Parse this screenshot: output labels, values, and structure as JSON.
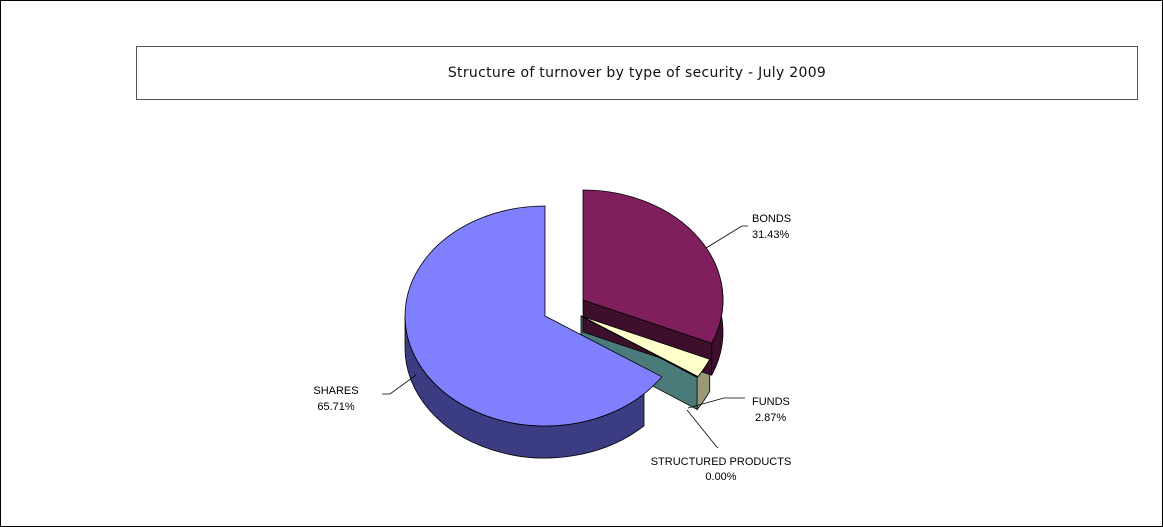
{
  "chart_data": {
    "type": "pie",
    "title": "Structure of turnover by type of security - July 2009",
    "slices": [
      {
        "label": "BONDS",
        "value": 31.43,
        "value_text": "31.43%",
        "color": "#7f1f5e",
        "exploded": true
      },
      {
        "label": "FUNDS",
        "value": 2.87,
        "value_text": "2.87%",
        "color": "#ffffcc",
        "exploded": true
      },
      {
        "label": "STRUCTURED PRODUCTS",
        "value": 0.0,
        "value_text": "0.00%",
        "color": "#4a7a7a",
        "exploded": true
      },
      {
        "label": "SHARES",
        "value": 65.71,
        "value_text": "65.71%",
        "color": "#8080ff",
        "exploded": false
      }
    ],
    "style": "3d-exploded-pie",
    "legend": "none"
  }
}
